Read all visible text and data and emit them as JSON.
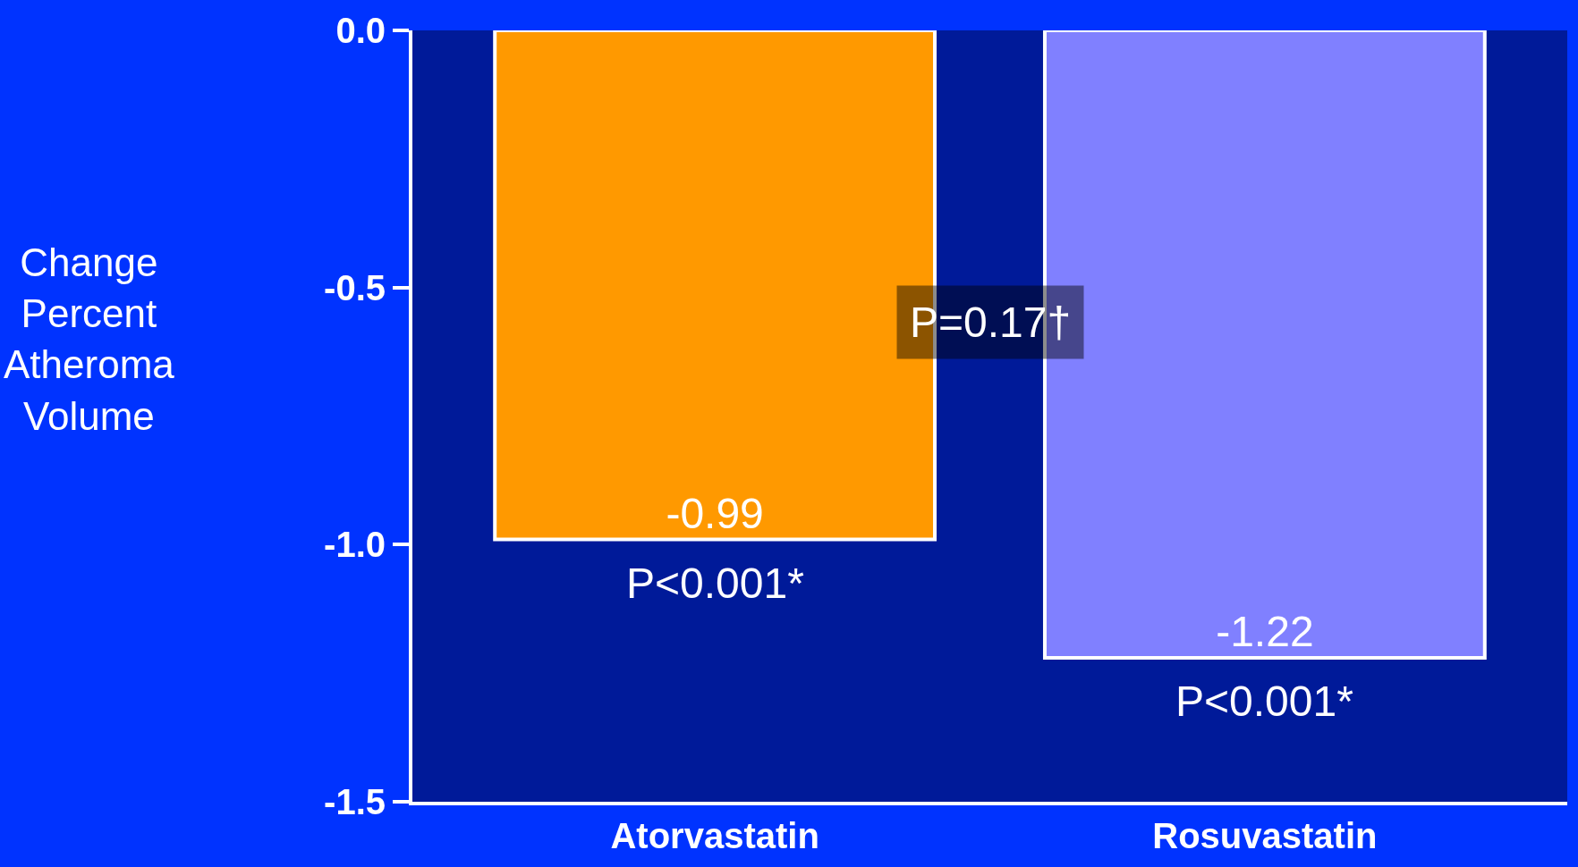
{
  "chart_data": {
    "type": "bar",
    "ylabel": "Change Percent Atheroma Volume",
    "categories": [
      "Atorvastatin",
      "Rosuvastatin"
    ],
    "values": [
      -0.99,
      -1.22
    ],
    "colors": [
      "#ff9900",
      "#8080ff"
    ],
    "data_labels": true,
    "ylim": [
      -1.5,
      0
    ],
    "yticks": [
      {
        "value": 0,
        "label": "0.0"
      },
      {
        "value": -0.5,
        "label": "-0.5"
      },
      {
        "value": -1.0,
        "label": "-1.0"
      },
      {
        "value": -1.5,
        "label": "-1.5"
      }
    ],
    "annotations": [
      "P<0.001*",
      "P<0.001*",
      "P=0.17†"
    ],
    "grid": false,
    "legend": false
  }
}
